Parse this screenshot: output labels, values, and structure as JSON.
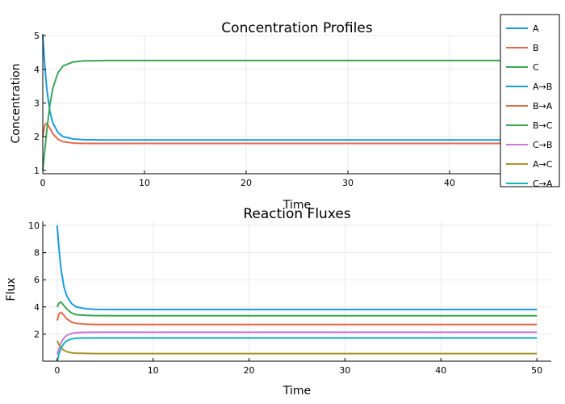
{
  "chart_data": [
    {
      "type": "line",
      "title": "Concentration Profiles",
      "xlabel": "Time",
      "ylabel": "Concentration",
      "xlim": [
        0,
        50
      ],
      "ylim": [
        0.9,
        5.05
      ],
      "xticks": [
        0,
        10,
        20,
        30,
        40,
        50
      ],
      "yticks": [
        1,
        2,
        3,
        4,
        5
      ],
      "grid": true,
      "series": [
        {
          "name": "A",
          "color": "#1a9be0",
          "x": [
            0,
            0.2,
            0.4,
            0.7,
            1.0,
            1.5,
            2.0,
            3.0,
            4.0,
            6.0,
            10,
            20,
            30,
            40,
            50
          ],
          "y": [
            5.0,
            4.1,
            3.4,
            2.75,
            2.4,
            2.12,
            2.0,
            1.93,
            1.91,
            1.9,
            1.9,
            1.9,
            1.9,
            1.9,
            1.9
          ]
        },
        {
          "name": "B",
          "color": "#e26a4a",
          "x": [
            0,
            0.2,
            0.4,
            0.7,
            1.0,
            1.5,
            2.0,
            3.0,
            4.0,
            6.0,
            10,
            20,
            30,
            40,
            50
          ],
          "y": [
            2.0,
            2.35,
            2.4,
            2.25,
            2.08,
            1.92,
            1.85,
            1.81,
            1.8,
            1.8,
            1.8,
            1.8,
            1.8,
            1.8,
            1.8
          ]
        },
        {
          "name": "C",
          "color": "#3aa655",
          "x": [
            0,
            0.2,
            0.4,
            0.7,
            1.0,
            1.5,
            2.0,
            3.0,
            4.0,
            6.0,
            10,
            20,
            30,
            40,
            50
          ],
          "y": [
            1.0,
            1.6,
            2.2,
            2.95,
            3.45,
            3.9,
            4.1,
            4.22,
            4.25,
            4.26,
            4.26,
            4.26,
            4.26,
            4.26,
            4.26
          ]
        }
      ]
    },
    {
      "type": "line",
      "title": "Reaction Fluxes",
      "xlabel": "Time",
      "ylabel": "Flux",
      "xlim": [
        -1.5,
        51.5
      ],
      "ylim": [
        0,
        10.3
      ],
      "xticks": [
        0,
        10,
        20,
        30,
        40,
        50
      ],
      "yticks": [
        2,
        4,
        6,
        8,
        10
      ],
      "grid": true,
      "series": [
        {
          "name": "A→B",
          "color": "#1a9be0",
          "x": [
            0,
            0.2,
            0.4,
            0.7,
            1.0,
            1.5,
            2.0,
            3.0,
            4.0,
            6.0,
            10,
            20,
            30,
            40,
            50
          ],
          "y": [
            10.0,
            8.2,
            6.8,
            5.5,
            4.8,
            4.24,
            4.0,
            3.86,
            3.82,
            3.8,
            3.8,
            3.8,
            3.8,
            3.8,
            3.8
          ]
        },
        {
          "name": "B→A",
          "color": "#e26a4a",
          "x": [
            0,
            0.2,
            0.4,
            0.7,
            1.0,
            1.5,
            2.0,
            3.0,
            4.0,
            6.0,
            10,
            20,
            30,
            40,
            50
          ],
          "y": [
            3.0,
            3.5,
            3.6,
            3.38,
            3.12,
            2.88,
            2.78,
            2.72,
            2.7,
            2.7,
            2.7,
            2.7,
            2.7,
            2.7,
            2.7
          ]
        },
        {
          "name": "B→C",
          "color": "#3aa655",
          "x": [
            0,
            0.2,
            0.4,
            0.7,
            1.0,
            1.5,
            2.0,
            3.0,
            4.0,
            6.0,
            10,
            20,
            30,
            40,
            50
          ],
          "y": [
            4.0,
            4.3,
            4.35,
            4.1,
            3.85,
            3.55,
            3.42,
            3.38,
            3.36,
            3.35,
            3.35,
            3.35,
            3.35,
            3.35,
            3.35
          ]
        },
        {
          "name": "C→B",
          "color": "#c97bd8",
          "x": [
            0,
            0.2,
            0.4,
            0.7,
            1.0,
            1.5,
            2.0,
            3.0,
            4.0,
            6.0,
            10,
            20,
            30,
            40,
            50
          ],
          "y": [
            0.5,
            0.95,
            1.35,
            1.7,
            1.9,
            2.05,
            2.1,
            2.12,
            2.13,
            2.13,
            2.13,
            2.13,
            2.13,
            2.13,
            2.13
          ]
        },
        {
          "name": "A→C",
          "color": "#a8952a",
          "x": [
            0,
            0.2,
            0.4,
            0.7,
            1.0,
            1.5,
            2.0,
            3.0,
            4.0,
            6.0,
            10,
            20,
            30,
            40,
            50
          ],
          "y": [
            1.5,
            1.2,
            0.98,
            0.8,
            0.7,
            0.62,
            0.59,
            0.57,
            0.56,
            0.56,
            0.56,
            0.56,
            0.56,
            0.56,
            0.56
          ]
        },
        {
          "name": "C→A",
          "color": "#18b3c0",
          "x": [
            0,
            0.2,
            0.4,
            0.7,
            1.0,
            1.5,
            2.0,
            3.0,
            4.0,
            6.0,
            10,
            20,
            30,
            40,
            50
          ],
          "y": [
            0.0,
            0.55,
            0.95,
            1.3,
            1.5,
            1.65,
            1.7,
            1.71,
            1.71,
            1.71,
            1.71,
            1.71,
            1.71,
            1.71,
            1.71
          ]
        }
      ]
    }
  ],
  "legend": {
    "placement": "top-right",
    "entries": [
      {
        "label": "A",
        "color": "#1a9be0"
      },
      {
        "label": "B",
        "color": "#e26a4a"
      },
      {
        "label": "C",
        "color": "#3aa655"
      },
      {
        "label": "A→B",
        "color": "#1a9be0"
      },
      {
        "label": "B→A",
        "color": "#e26a4a"
      },
      {
        "label": "B→C",
        "color": "#3aa655"
      },
      {
        "label": "C→B",
        "color": "#c97bd8"
      },
      {
        "label": "A→C",
        "color": "#a8952a"
      },
      {
        "label": "C→A",
        "color": "#18b3c0"
      }
    ]
  }
}
